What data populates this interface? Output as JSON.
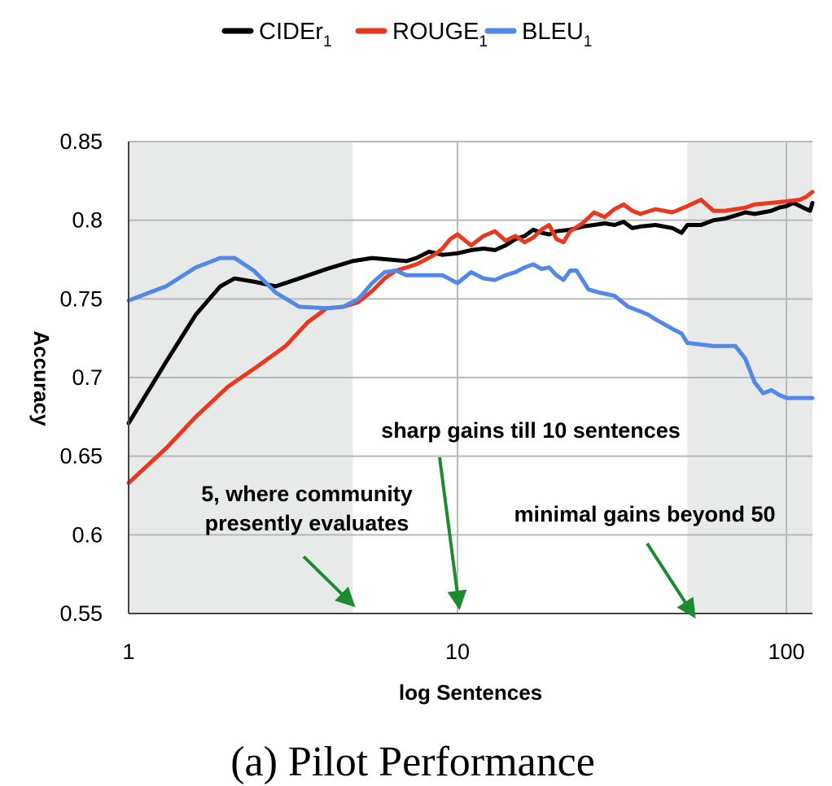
{
  "chart_data": {
    "type": "line",
    "title": "",
    "caption": "(a) Pilot Performance",
    "xlabel": "log Sentences",
    "ylabel": "Accuracy",
    "x_scale": "log",
    "xlim": [
      1,
      120
    ],
    "ylim": [
      0.55,
      0.85
    ],
    "x_ticks": [
      {
        "value": 1,
        "label": "1"
      },
      {
        "value": 10,
        "label": "10"
      },
      {
        "value": 100,
        "label": "100"
      }
    ],
    "y_ticks": [
      {
        "value": 0.85,
        "label": "0.85"
      },
      {
        "value": 0.8,
        "label": "0.8"
      },
      {
        "value": 0.75,
        "label": "0.75"
      },
      {
        "value": 0.7,
        "label": "0.7"
      },
      {
        "value": 0.65,
        "label": "0.65"
      },
      {
        "value": 0.6,
        "label": "0.6"
      },
      {
        "value": 0.55,
        "label": "0.55"
      }
    ],
    "grid": true,
    "legend_position": "top",
    "shaded_regions": [
      [
        1,
        4.8
      ],
      [
        50,
        120
      ]
    ],
    "series": [
      {
        "name": "CIDEr",
        "subscript": "1",
        "color": "#000000",
        "points": [
          [
            1,
            0.671
          ],
          [
            1.3,
            0.71
          ],
          [
            1.6,
            0.74
          ],
          [
            1.9,
            0.758
          ],
          [
            2.1,
            0.763
          ],
          [
            2.4,
            0.761
          ],
          [
            2.8,
            0.758
          ],
          [
            3.3,
            0.763
          ],
          [
            4,
            0.769
          ],
          [
            4.8,
            0.774
          ],
          [
            5.5,
            0.776
          ],
          [
            6.2,
            0.775
          ],
          [
            7,
            0.774
          ],
          [
            7.5,
            0.776
          ],
          [
            8.2,
            0.78
          ],
          [
            9,
            0.778
          ],
          [
            10,
            0.779
          ],
          [
            11,
            0.781
          ],
          [
            12,
            0.782
          ],
          [
            13,
            0.781
          ],
          [
            14,
            0.784
          ],
          [
            15,
            0.788
          ],
          [
            16,
            0.79
          ],
          [
            17,
            0.794
          ],
          [
            18,
            0.792
          ],
          [
            19,
            0.791
          ],
          [
            20,
            0.793
          ],
          [
            22,
            0.794
          ],
          [
            24,
            0.796
          ],
          [
            26,
            0.797
          ],
          [
            28,
            0.798
          ],
          [
            30,
            0.797
          ],
          [
            32,
            0.799
          ],
          [
            34,
            0.795
          ],
          [
            36,
            0.796
          ],
          [
            40,
            0.797
          ],
          [
            45,
            0.795
          ],
          [
            48,
            0.792
          ],
          [
            50,
            0.797
          ],
          [
            55,
            0.797
          ],
          [
            60,
            0.8
          ],
          [
            65,
            0.801
          ],
          [
            70,
            0.803
          ],
          [
            75,
            0.805
          ],
          [
            80,
            0.804
          ],
          [
            85,
            0.805
          ],
          [
            90,
            0.806
          ],
          [
            95,
            0.808
          ],
          [
            100,
            0.809
          ],
          [
            105,
            0.811
          ],
          [
            110,
            0.809
          ],
          [
            115,
            0.807
          ],
          [
            118,
            0.806
          ],
          [
            120,
            0.811
          ]
        ]
      },
      {
        "name": "ROUGE",
        "subscript": "1",
        "color": "#e8391f",
        "points": [
          [
            1,
            0.633
          ],
          [
            1.3,
            0.655
          ],
          [
            1.6,
            0.675
          ],
          [
            2,
            0.694
          ],
          [
            2.5,
            0.708
          ],
          [
            3,
            0.72
          ],
          [
            3.5,
            0.735
          ],
          [
            4,
            0.744
          ],
          [
            4.5,
            0.745
          ],
          [
            5,
            0.748
          ],
          [
            5.5,
            0.755
          ],
          [
            6,
            0.763
          ],
          [
            6.5,
            0.768
          ],
          [
            7,
            0.77
          ],
          [
            7.5,
            0.772
          ],
          [
            8,
            0.775
          ],
          [
            8.5,
            0.778
          ],
          [
            9,
            0.782
          ],
          [
            9.5,
            0.788
          ],
          [
            10,
            0.791
          ],
          [
            11,
            0.784
          ],
          [
            12,
            0.79
          ],
          [
            13,
            0.793
          ],
          [
            14,
            0.787
          ],
          [
            15,
            0.79
          ],
          [
            16,
            0.786
          ],
          [
            17,
            0.789
          ],
          [
            18,
            0.794
          ],
          [
            19,
            0.797
          ],
          [
            20,
            0.788
          ],
          [
            21,
            0.786
          ],
          [
            22,
            0.793
          ],
          [
            24,
            0.798
          ],
          [
            26,
            0.805
          ],
          [
            28,
            0.802
          ],
          [
            30,
            0.807
          ],
          [
            32,
            0.81
          ],
          [
            34,
            0.806
          ],
          [
            36,
            0.804
          ],
          [
            40,
            0.807
          ],
          [
            45,
            0.805
          ],
          [
            50,
            0.809
          ],
          [
            55,
            0.813
          ],
          [
            60,
            0.806
          ],
          [
            65,
            0.806
          ],
          [
            70,
            0.807
          ],
          [
            75,
            0.808
          ],
          [
            80,
            0.81
          ],
          [
            90,
            0.811
          ],
          [
            100,
            0.812
          ],
          [
            110,
            0.813
          ],
          [
            115,
            0.815
          ],
          [
            120,
            0.818
          ]
        ]
      },
      {
        "name": "BLEU",
        "subscript": "1",
        "color": "#5288e8",
        "points": [
          [
            1,
            0.749
          ],
          [
            1.3,
            0.758
          ],
          [
            1.6,
            0.77
          ],
          [
            1.9,
            0.776
          ],
          [
            2.1,
            0.776
          ],
          [
            2.4,
            0.768
          ],
          [
            2.8,
            0.754
          ],
          [
            3.3,
            0.745
          ],
          [
            4,
            0.744
          ],
          [
            4.5,
            0.745
          ],
          [
            5,
            0.75
          ],
          [
            5.5,
            0.76
          ],
          [
            6,
            0.767
          ],
          [
            6.5,
            0.768
          ],
          [
            7,
            0.765
          ],
          [
            8,
            0.765
          ],
          [
            9,
            0.765
          ],
          [
            10,
            0.76
          ],
          [
            11,
            0.767
          ],
          [
            12,
            0.763
          ],
          [
            13,
            0.762
          ],
          [
            14,
            0.765
          ],
          [
            15,
            0.767
          ],
          [
            16,
            0.77
          ],
          [
            17,
            0.772
          ],
          [
            18,
            0.769
          ],
          [
            19,
            0.77
          ],
          [
            20,
            0.765
          ],
          [
            21,
            0.762
          ],
          [
            22,
            0.768
          ],
          [
            23,
            0.768
          ],
          [
            25,
            0.756
          ],
          [
            27,
            0.754
          ],
          [
            30,
            0.752
          ],
          [
            33,
            0.745
          ],
          [
            36,
            0.742
          ],
          [
            38,
            0.74
          ],
          [
            40,
            0.737
          ],
          [
            45,
            0.731
          ],
          [
            48,
            0.728
          ],
          [
            50,
            0.722
          ],
          [
            55,
            0.721
          ],
          [
            60,
            0.72
          ],
          [
            65,
            0.72
          ],
          [
            70,
            0.72
          ],
          [
            75,
            0.712
          ],
          [
            80,
            0.697
          ],
          [
            85,
            0.69
          ],
          [
            90,
            0.692
          ],
          [
            95,
            0.689
          ],
          [
            100,
            0.687
          ],
          [
            110,
            0.687
          ],
          [
            120,
            0.687
          ]
        ]
      }
    ],
    "annotations": [
      {
        "lines": [
          "sharp gains till 10 sentences"
        ],
        "arrow_to_x": 10
      },
      {
        "lines": [
          "5, where community",
          "presently evaluates"
        ],
        "arrow_to_x": 5
      },
      {
        "lines": [
          "minimal gains beyond 50"
        ],
        "arrow_to_x": 50
      }
    ]
  },
  "colors": {
    "shade": "#e8e9e9",
    "grid": "#b8b8b8",
    "annotation_arrow": "#1e8a2f"
  }
}
